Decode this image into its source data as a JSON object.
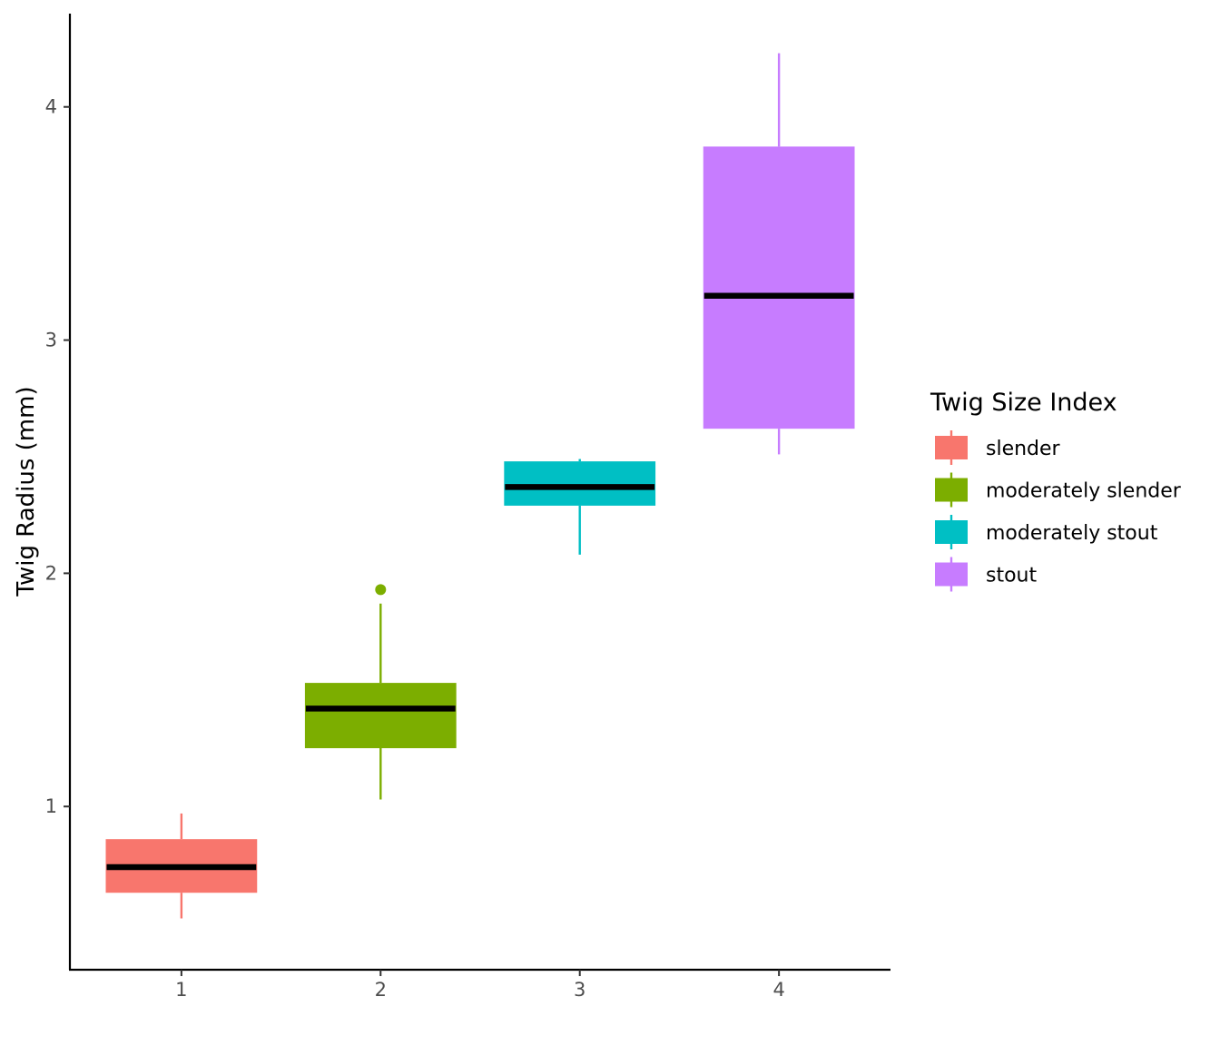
{
  "chart_data": {
    "type": "boxplot",
    "title": "",
    "xlabel": "",
    "ylabel": "Twig Radius (mm)",
    "ylim": [
      0.3,
      4.4
    ],
    "xlim": [
      0.44,
      4.56
    ],
    "x_ticks": [
      "1",
      "2",
      "3",
      "4"
    ],
    "y_ticks": [
      "1",
      "2",
      "3",
      "4"
    ],
    "grid": false,
    "legend": {
      "title": "Twig Size Index",
      "position": "right"
    },
    "median_color": "#000000",
    "series": [
      {
        "name": "slender",
        "x": 1,
        "color": "#F8766D",
        "whisker_low": 0.52,
        "q1": 0.63,
        "median": 0.74,
        "q3": 0.86,
        "whisker_high": 0.97,
        "outliers": []
      },
      {
        "name": "moderately slender",
        "x": 2,
        "color": "#7CAE00",
        "whisker_low": 1.03,
        "q1": 1.25,
        "median": 1.42,
        "q3": 1.53,
        "whisker_high": 1.87,
        "outliers": [
          1.93
        ]
      },
      {
        "name": "moderately stout",
        "x": 3,
        "color": "#00BFC4",
        "whisker_low": 2.08,
        "q1": 2.29,
        "median": 2.37,
        "q3": 2.48,
        "whisker_high": 2.49,
        "outliers": []
      },
      {
        "name": "stout",
        "x": 4,
        "color": "#C77CFF",
        "whisker_low": 2.51,
        "q1": 2.62,
        "median": 3.19,
        "q3": 3.83,
        "whisker_high": 4.23,
        "outliers": []
      }
    ]
  }
}
